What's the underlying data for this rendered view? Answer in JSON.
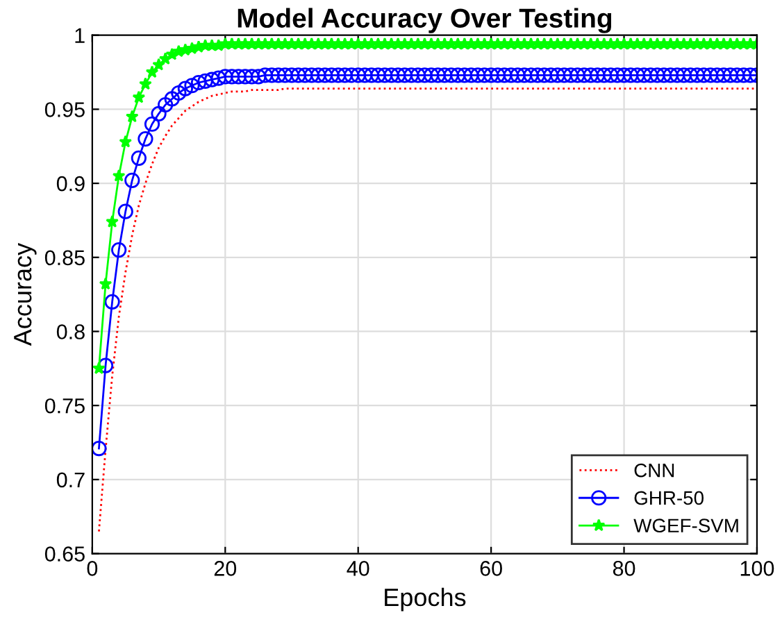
{
  "chart_data": {
    "type": "line",
    "title": "Model Accuracy Over Testing",
    "xlabel": "Epochs",
    "ylabel": "Accuracy",
    "x": [
      1,
      2,
      3,
      4,
      5,
      6,
      7,
      8,
      9,
      10,
      11,
      12,
      13,
      14,
      15,
      16,
      17,
      18,
      19,
      20,
      21,
      22,
      23,
      24,
      25,
      26,
      27,
      28,
      29,
      30,
      31,
      32,
      33,
      34,
      35,
      36,
      37,
      38,
      39,
      40,
      41,
      42,
      43,
      44,
      45,
      46,
      47,
      48,
      49,
      50,
      51,
      52,
      53,
      54,
      55,
      56,
      57,
      58,
      59,
      60,
      61,
      62,
      63,
      64,
      65,
      66,
      67,
      68,
      69,
      70,
      71,
      72,
      73,
      74,
      75,
      76,
      77,
      78,
      79,
      80,
      81,
      82,
      83,
      84,
      85,
      86,
      87,
      88,
      89,
      90,
      91,
      92,
      93,
      94,
      95,
      96,
      97,
      98,
      99,
      100
    ],
    "series": [
      {
        "name": "CNN",
        "color": "#ff0000",
        "marker": "none",
        "line_style": "dotted",
        "values": [
          0.665,
          0.72,
          0.77,
          0.81,
          0.84,
          0.865,
          0.885,
          0.9,
          0.913,
          0.924,
          0.932,
          0.939,
          0.944,
          0.949,
          0.952,
          0.955,
          0.957,
          0.959,
          0.96,
          0.961,
          0.962,
          0.962,
          0.962,
          0.963,
          0.963,
          0.963,
          0.963,
          0.963,
          0.964,
          0.964,
          0.964,
          0.964,
          0.964,
          0.964,
          0.964,
          0.964,
          0.964,
          0.964,
          0.964,
          0.964,
          0.964,
          0.964,
          0.964,
          0.964,
          0.964,
          0.964,
          0.964,
          0.964,
          0.964,
          0.964,
          0.964,
          0.964,
          0.964,
          0.964,
          0.964,
          0.964,
          0.964,
          0.964,
          0.964,
          0.964,
          0.964,
          0.964,
          0.964,
          0.964,
          0.964,
          0.964,
          0.964,
          0.964,
          0.964,
          0.964,
          0.964,
          0.964,
          0.964,
          0.964,
          0.964,
          0.964,
          0.964,
          0.964,
          0.964,
          0.964,
          0.964,
          0.964,
          0.964,
          0.964,
          0.964,
          0.964,
          0.964,
          0.964,
          0.964,
          0.964,
          0.964,
          0.964,
          0.964,
          0.964,
          0.964,
          0.964,
          0.964,
          0.964,
          0.964,
          0.964
        ]
      },
      {
        "name": "GHR-50",
        "color": "#0000ff",
        "marker": "circle",
        "line_style": "solid",
        "values": [
          0.721,
          0.777,
          0.82,
          0.855,
          0.881,
          0.902,
          0.917,
          0.93,
          0.94,
          0.947,
          0.953,
          0.957,
          0.961,
          0.964,
          0.966,
          0.968,
          0.969,
          0.97,
          0.971,
          0.972,
          0.972,
          0.972,
          0.972,
          0.972,
          0.972,
          0.973,
          0.973,
          0.973,
          0.973,
          0.973,
          0.973,
          0.973,
          0.973,
          0.973,
          0.973,
          0.973,
          0.973,
          0.973,
          0.973,
          0.973,
          0.973,
          0.973,
          0.973,
          0.973,
          0.973,
          0.973,
          0.973,
          0.973,
          0.973,
          0.973,
          0.973,
          0.973,
          0.973,
          0.973,
          0.973,
          0.973,
          0.973,
          0.973,
          0.973,
          0.973,
          0.973,
          0.973,
          0.973,
          0.973,
          0.973,
          0.973,
          0.973,
          0.973,
          0.973,
          0.973,
          0.973,
          0.973,
          0.973,
          0.973,
          0.973,
          0.973,
          0.973,
          0.973,
          0.973,
          0.973,
          0.973,
          0.973,
          0.973,
          0.973,
          0.973,
          0.973,
          0.973,
          0.973,
          0.973,
          0.973,
          0.973,
          0.973,
          0.973,
          0.973,
          0.973,
          0.973,
          0.973,
          0.973,
          0.973,
          0.973
        ]
      },
      {
        "name": "WGEF-SVM",
        "color": "#00ff00",
        "marker": "star",
        "line_style": "solid",
        "values": [
          0.775,
          0.832,
          0.874,
          0.905,
          0.928,
          0.945,
          0.958,
          0.967,
          0.975,
          0.98,
          0.984,
          0.987,
          0.989,
          0.99,
          0.991,
          0.992,
          0.993,
          0.993,
          0.993,
          0.994,
          0.994,
          0.994,
          0.994,
          0.994,
          0.994,
          0.994,
          0.994,
          0.994,
          0.994,
          0.994,
          0.994,
          0.994,
          0.994,
          0.994,
          0.994,
          0.994,
          0.994,
          0.994,
          0.994,
          0.994,
          0.994,
          0.994,
          0.994,
          0.994,
          0.994,
          0.994,
          0.994,
          0.994,
          0.994,
          0.994,
          0.994,
          0.994,
          0.994,
          0.994,
          0.994,
          0.994,
          0.994,
          0.994,
          0.994,
          0.994,
          0.994,
          0.994,
          0.994,
          0.994,
          0.994,
          0.994,
          0.994,
          0.994,
          0.994,
          0.994,
          0.994,
          0.994,
          0.994,
          0.994,
          0.994,
          0.994,
          0.994,
          0.994,
          0.994,
          0.994,
          0.994,
          0.994,
          0.994,
          0.994,
          0.994,
          0.994,
          0.994,
          0.994,
          0.994,
          0.994,
          0.994,
          0.994,
          0.994,
          0.994,
          0.994,
          0.994,
          0.994,
          0.994,
          0.994,
          0.994
        ]
      }
    ],
    "xlim": [
      0,
      100
    ],
    "xticks": [
      0,
      20,
      40,
      60,
      80,
      100
    ],
    "ylim": [
      0.65,
      1
    ],
    "yticks": [
      0.65,
      0.7,
      0.75,
      0.8,
      0.85,
      0.9,
      0.95,
      1
    ],
    "grid": true,
    "legend": "bottom right"
  }
}
